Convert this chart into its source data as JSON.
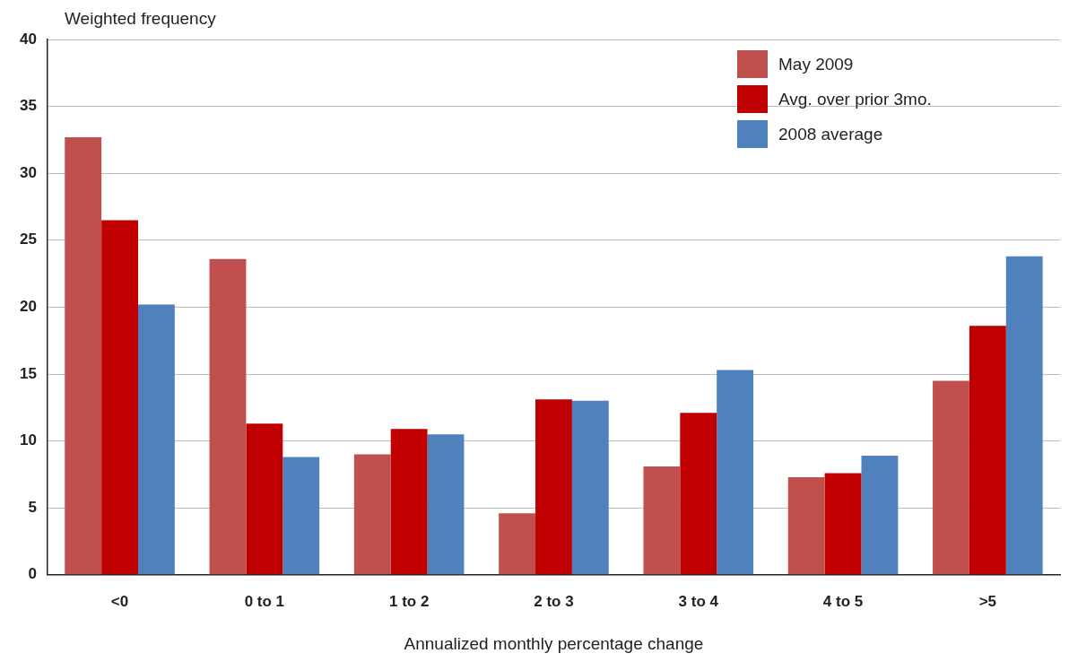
{
  "chart_data": {
    "type": "bar",
    "ylabel": "Weighted frequency",
    "xlabel": "Annualized monthly percentage change",
    "categories": [
      "<0",
      "0 to 1",
      "1 to 2",
      "2 to 3",
      "3 to 4",
      "4 to 5",
      ">5"
    ],
    "series": [
      {
        "name": "May 2009",
        "color": "#c0504d",
        "values": [
          32.7,
          23.6,
          9.0,
          4.6,
          8.1,
          7.3,
          14.5
        ]
      },
      {
        "name": "Avg. over prior 3mo.",
        "color": "#c00000",
        "values": [
          26.5,
          11.3,
          10.9,
          13.1,
          12.1,
          7.6,
          18.6
        ]
      },
      {
        "name": "2008 average",
        "color": "#4f81bd",
        "values": [
          20.2,
          8.8,
          10.5,
          13.0,
          15.3,
          8.9,
          23.8
        ]
      }
    ],
    "ylim": [
      0,
      40
    ],
    "yticks": [
      0,
      5,
      10,
      15,
      20,
      25,
      30,
      35,
      40
    ],
    "grid": "y",
    "legend": "top right"
  }
}
